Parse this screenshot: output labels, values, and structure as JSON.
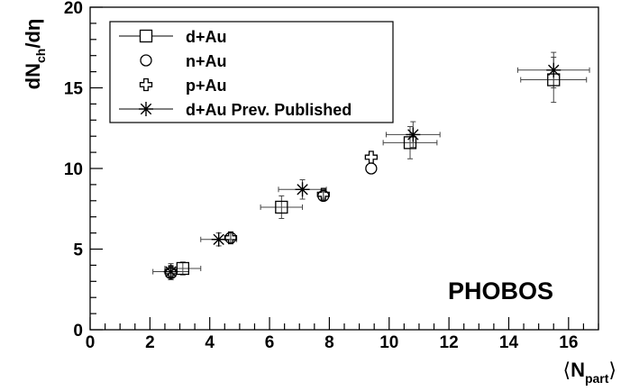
{
  "chart_data": {
    "type": "scatter",
    "title": "",
    "xlabel": "⟨N_part⟩",
    "xlabel_main": "N",
    "xlabel_sub": "part",
    "xlabel_open": "⟨",
    "xlabel_close": "⟩",
    "ylabel_main": "dN",
    "ylabel_sub": "ch",
    "ylabel_tail": "/dη",
    "xlim": [
      0,
      17
    ],
    "ylim": [
      0,
      20
    ],
    "x_ticks": [
      0,
      2,
      4,
      6,
      8,
      10,
      12,
      14,
      16
    ],
    "y_ticks": [
      0,
      5,
      10,
      15,
      20
    ],
    "grid": false,
    "legend_position": "top-left",
    "annotation": "PHOBOS",
    "series": [
      {
        "name": "d+Au",
        "marker": "open-square",
        "points": [
          {
            "x": 3.1,
            "y": 3.8,
            "xerr": 0.6,
            "yerr": 0.4
          },
          {
            "x": 6.4,
            "y": 7.6,
            "xerr": 0.7,
            "yerr": 0.7
          },
          {
            "x": 10.7,
            "y": 11.6,
            "xerr": 0.9,
            "yerr": 1.0
          },
          {
            "x": 15.5,
            "y": 15.5,
            "xerr": 1.1,
            "yerr": 1.4
          }
        ]
      },
      {
        "name": "n+Au",
        "marker": "open-circle",
        "points": [
          {
            "x": 2.7,
            "y": 3.5,
            "xerr": 0,
            "yerr": 0.4
          },
          {
            "x": 4.7,
            "y": 5.7,
            "xerr": 0,
            "yerr": 0.3
          },
          {
            "x": 7.8,
            "y": 8.3,
            "xerr": 0,
            "yerr": 0.25
          },
          {
            "x": 9.4,
            "y": 10.0,
            "xerr": 0,
            "yerr": 0
          }
        ]
      },
      {
        "name": "p+Au",
        "marker": "open-cross",
        "points": [
          {
            "x": 2.7,
            "y": 3.6,
            "xerr": 0,
            "yerr": 0.3
          },
          {
            "x": 4.7,
            "y": 5.7,
            "xerr": 0,
            "yerr": 0.3
          },
          {
            "x": 7.8,
            "y": 8.4,
            "xerr": 0,
            "yerr": 0.25
          },
          {
            "x": 9.4,
            "y": 10.7,
            "xerr": 0,
            "yerr": 0
          }
        ]
      },
      {
        "name": "d+Au Prev. Published",
        "marker": "star",
        "points": [
          {
            "x": 2.7,
            "y": 3.6,
            "xerr": 0.6,
            "yerr": 0.5
          },
          {
            "x": 4.3,
            "y": 5.6,
            "xerr": 0.6,
            "yerr": 0.4
          },
          {
            "x": 7.1,
            "y": 8.7,
            "xerr": 0.8,
            "yerr": 0.6
          },
          {
            "x": 10.8,
            "y": 12.1,
            "xerr": 0.9,
            "yerr": 0.8
          },
          {
            "x": 15.5,
            "y": 16.1,
            "xerr": 1.2,
            "yerr": 1.1
          }
        ]
      }
    ]
  }
}
